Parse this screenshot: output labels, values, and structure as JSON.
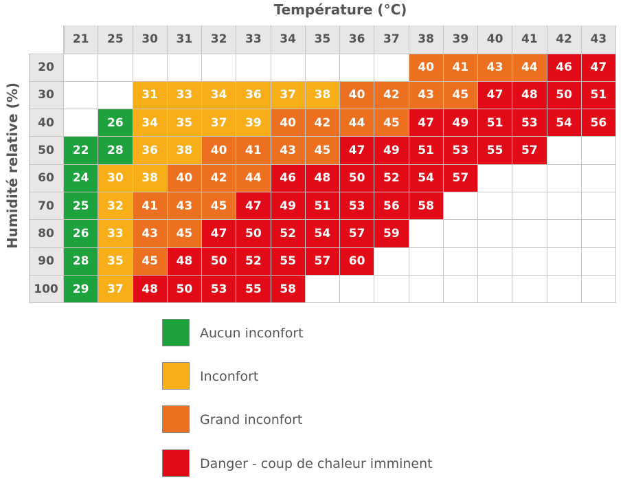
{
  "chart_data": {
    "type": "heatmap",
    "title": "",
    "xlabel": "Température (°C)",
    "ylabel": "Humidité relative (%)",
    "x": [
      "21",
      "25",
      "30",
      "31",
      "32",
      "33",
      "34",
      "35",
      "36",
      "37",
      "38",
      "39",
      "40",
      "41",
      "42",
      "43"
    ],
    "y": [
      "20",
      "30",
      "40",
      "50",
      "60",
      "70",
      "80",
      "90",
      "100"
    ],
    "values": [
      [
        null,
        null,
        null,
        null,
        null,
        null,
        null,
        null,
        null,
        null,
        40,
        41,
        43,
        44,
        46,
        47
      ],
      [
        null,
        null,
        31,
        33,
        34,
        36,
        37,
        38,
        40,
        42,
        43,
        45,
        47,
        48,
        50,
        51
      ],
      [
        null,
        26,
        34,
        35,
        37,
        39,
        40,
        42,
        44,
        45,
        47,
        49,
        51,
        53,
        54,
        56
      ],
      [
        22,
        28,
        36,
        38,
        40,
        41,
        43,
        45,
        47,
        49,
        51,
        53,
        55,
        57,
        null,
        null
      ],
      [
        24,
        30,
        38,
        40,
        42,
        44,
        46,
        48,
        50,
        52,
        54,
        57,
        null,
        null,
        null,
        null
      ],
      [
        25,
        32,
        41,
        43,
        45,
        47,
        49,
        51,
        53,
        56,
        58,
        null,
        null,
        null,
        null,
        null
      ],
      [
        26,
        33,
        43,
        45,
        47,
        50,
        52,
        54,
        57,
        59,
        null,
        null,
        null,
        null,
        null,
        null
      ],
      [
        28,
        35,
        45,
        48,
        50,
        52,
        55,
        57,
        60,
        null,
        null,
        null,
        null,
        null,
        null,
        null
      ],
      [
        29,
        37,
        48,
        50,
        53,
        55,
        58,
        null,
        null,
        null,
        null,
        null,
        null,
        null,
        null,
        null
      ]
    ],
    "categories_map": [
      [
        null,
        null,
        null,
        null,
        null,
        null,
        null,
        null,
        null,
        null,
        2,
        2,
        2,
        2,
        3,
        3
      ],
      [
        null,
        null,
        1,
        1,
        1,
        1,
        1,
        1,
        2,
        2,
        2,
        2,
        3,
        3,
        3,
        3
      ],
      [
        null,
        0,
        1,
        1,
        1,
        1,
        2,
        2,
        2,
        2,
        3,
        3,
        3,
        3,
        3,
        3
      ],
      [
        0,
        0,
        1,
        1,
        2,
        2,
        2,
        2,
        3,
        3,
        3,
        3,
        3,
        3,
        null,
        null
      ],
      [
        0,
        1,
        1,
        2,
        2,
        2,
        3,
        3,
        3,
        3,
        3,
        3,
        null,
        null,
        null,
        null
      ],
      [
        0,
        1,
        2,
        2,
        2,
        3,
        3,
        3,
        3,
        3,
        3,
        null,
        null,
        null,
        null,
        null
      ],
      [
        0,
        1,
        2,
        2,
        3,
        3,
        3,
        3,
        3,
        3,
        null,
        null,
        null,
        null,
        null,
        null
      ],
      [
        0,
        1,
        2,
        3,
        3,
        3,
        3,
        3,
        3,
        null,
        null,
        null,
        null,
        null,
        null,
        null
      ],
      [
        0,
        1,
        3,
        3,
        3,
        3,
        3,
        null,
        null,
        null,
        null,
        null,
        null,
        null,
        null,
        null
      ]
    ],
    "legend": [
      {
        "label": "Aucun inconfort",
        "color": "#1da23e"
      },
      {
        "label": "Inconfort",
        "color": "#f8ae18"
      },
      {
        "label": "Grand inconfort",
        "color": "#ec701f"
      },
      {
        "label": "Danger - coup de chaleur imminent",
        "color": "#e10a16"
      }
    ],
    "header_bg": "#e9e6e6",
    "grid_color": "#c7c4c4"
  }
}
